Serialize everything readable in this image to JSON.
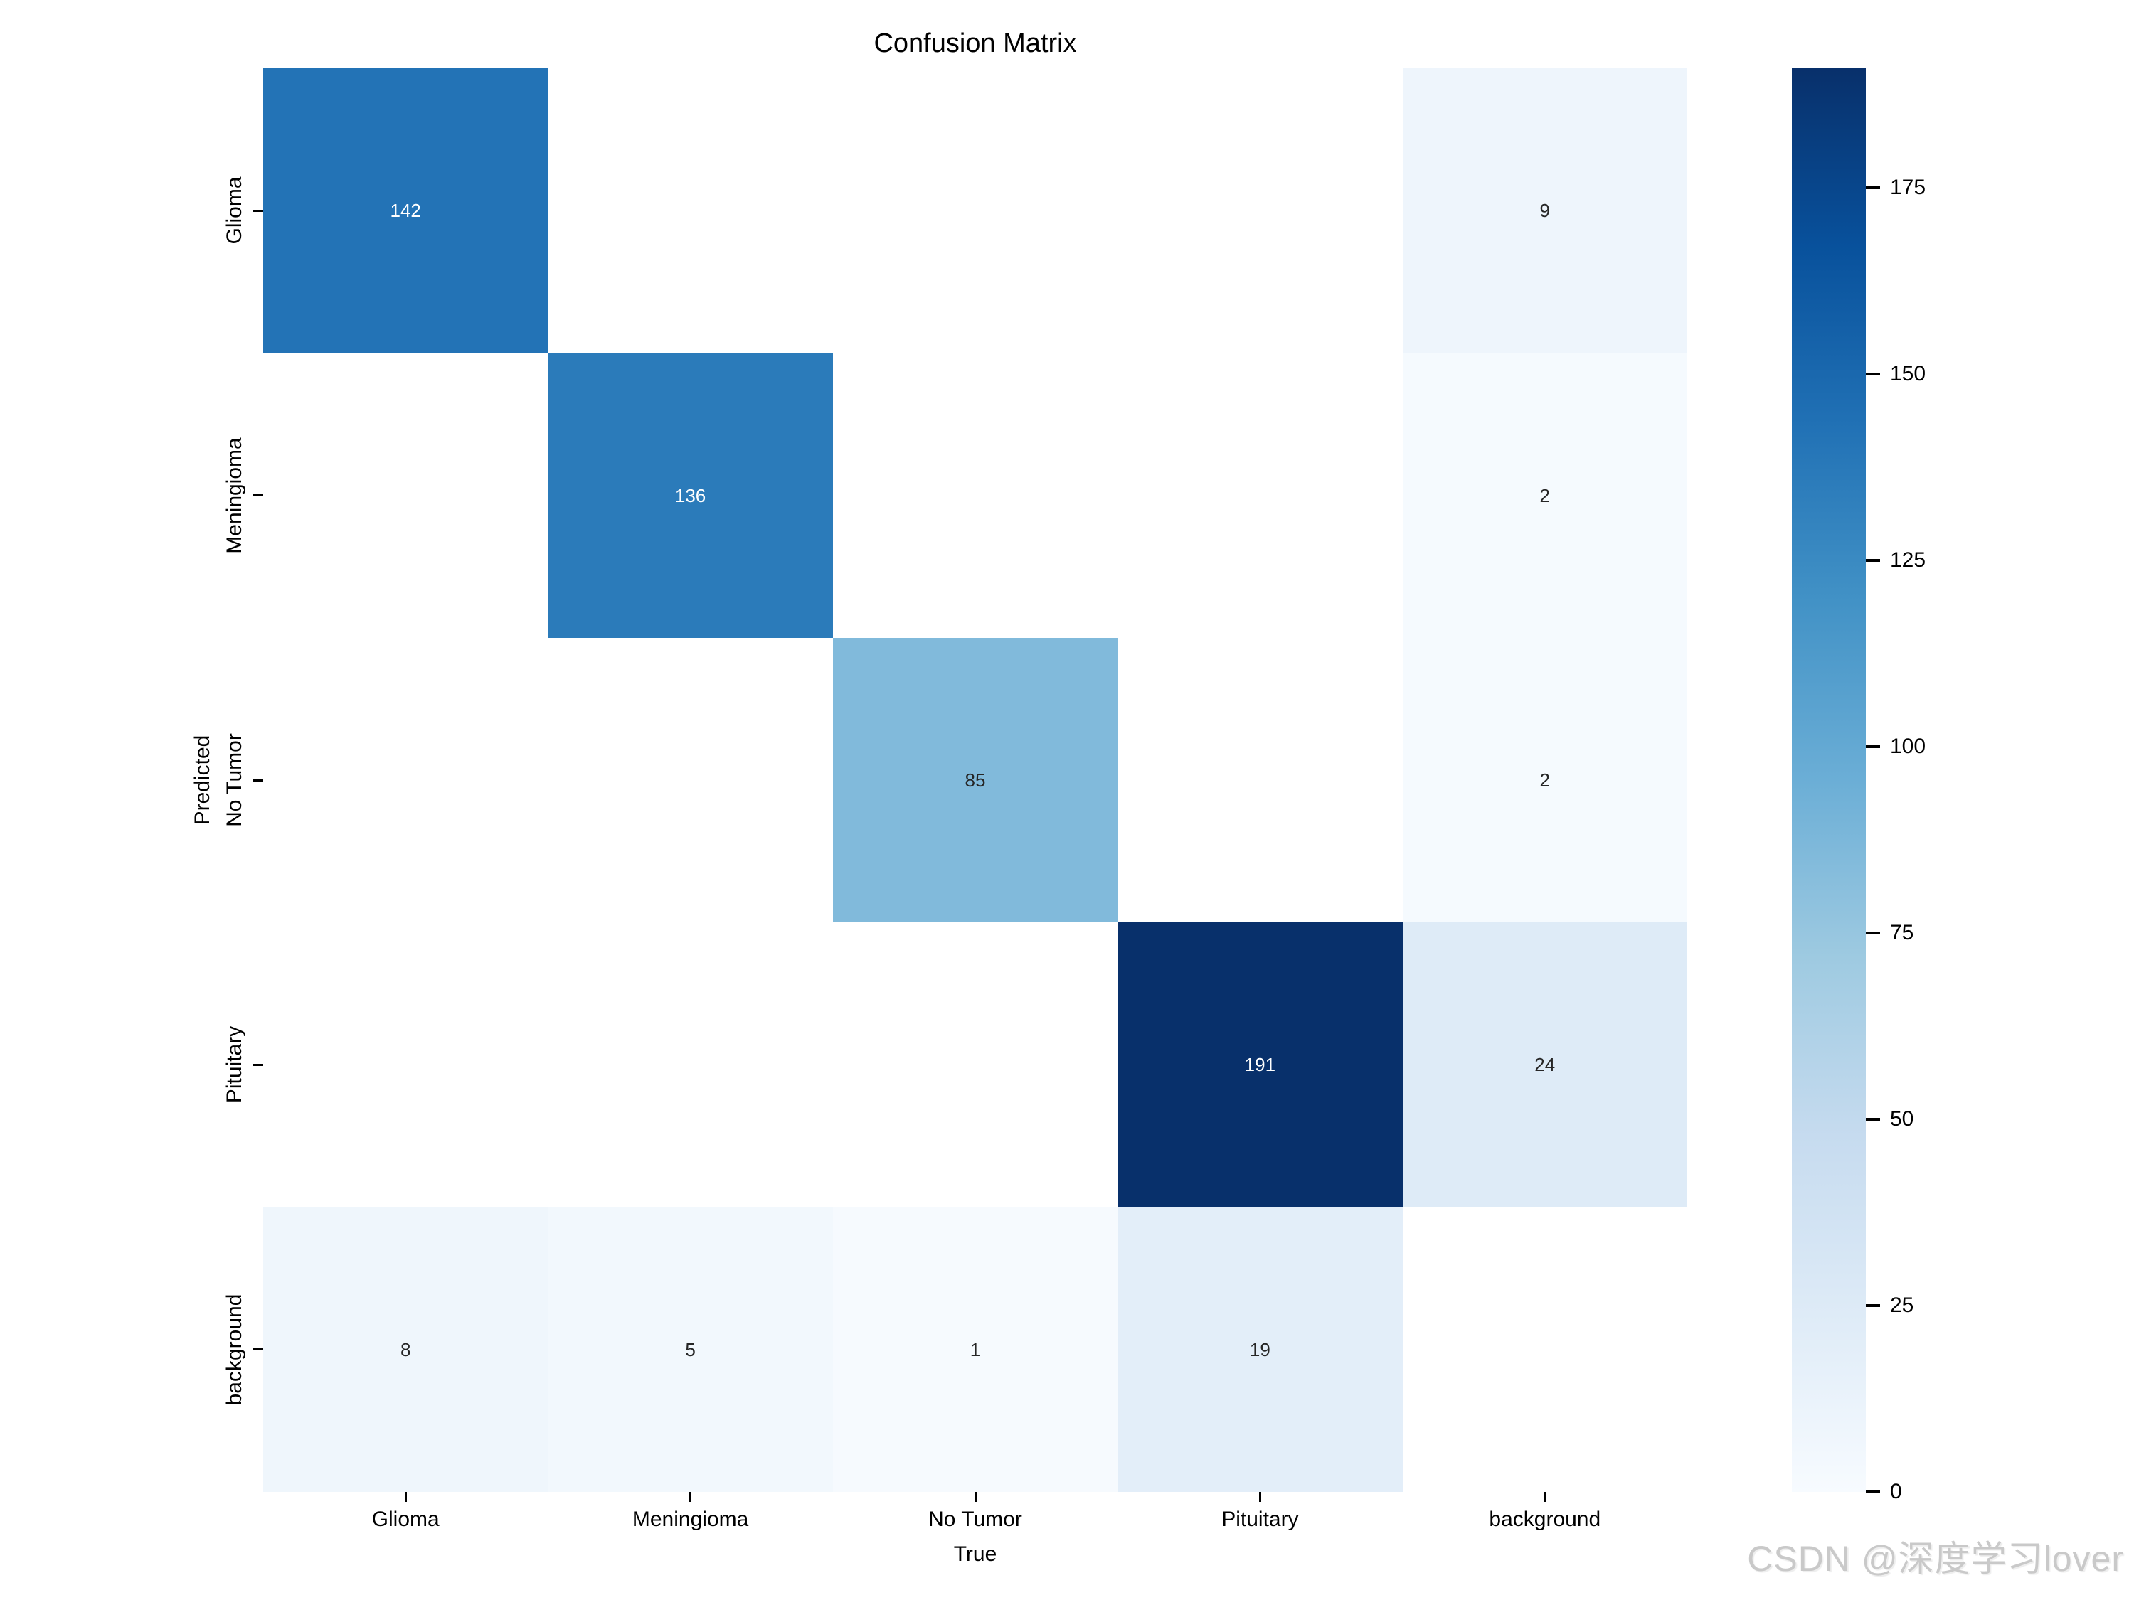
{
  "chart_data": {
    "type": "heatmap",
    "title": "Confusion Matrix",
    "xlabel": "True",
    "ylabel": "Predicted",
    "x_categories": [
      "Glioma",
      "Meningioma",
      "No Tumor",
      "Pituitary",
      "background"
    ],
    "y_categories": [
      "Glioma",
      "Meningioma",
      "No Tumor",
      "Pituitary",
      "background"
    ],
    "matrix": [
      [
        142,
        0,
        0,
        0,
        9
      ],
      [
        0,
        136,
        0,
        0,
        2
      ],
      [
        0,
        0,
        85,
        0,
        2
      ],
      [
        0,
        0,
        0,
        191,
        24
      ],
      [
        8,
        5,
        1,
        19,
        0
      ]
    ],
    "annotations": [
      [
        "142",
        "",
        "",
        "",
        "9"
      ],
      [
        "",
        "136",
        "",
        "",
        "2"
      ],
      [
        "",
        "",
        "85",
        "",
        "2"
      ],
      [
        "",
        "",
        "",
        "191",
        "24"
      ],
      [
        "8",
        "5",
        "1",
        "19",
        ""
      ]
    ],
    "annotation_colors": [
      [
        "#ffffff",
        "",
        "",
        "",
        "#262626"
      ],
      [
        "",
        "#ffffff",
        "",
        "",
        "#262626"
      ],
      [
        "",
        "",
        "#262626",
        "",
        "#262626"
      ],
      [
        "",
        "",
        "",
        "#ffffff",
        "#262626"
      ],
      [
        "#262626",
        "#262626",
        "#262626",
        "#262626",
        ""
      ]
    ],
    "cell_colors": [
      [
        "#2373b6",
        "#ffffff",
        "#ffffff",
        "#ffffff",
        "#eef5fc"
      ],
      [
        "#ffffff",
        "#2b7bba",
        "#ffffff",
        "#ffffff",
        "#f5fafe"
      ],
      [
        "#ffffff",
        "#ffffff",
        "#81badb",
        "#ffffff",
        "#f5fafe"
      ],
      [
        "#ffffff",
        "#ffffff",
        "#ffffff",
        "#08306b",
        "#deebf7"
      ],
      [
        "#eff6fc",
        "#f2f8fd",
        "#f6fafe",
        "#e3eef9",
        "#ffffff"
      ]
    ],
    "colormap": "Blues",
    "grid": false,
    "legend_position": "right-colorbar",
    "colorbar": {
      "vmin": 0,
      "vmax": 191,
      "ticks": [
        "0",
        "25",
        "50",
        "75",
        "100",
        "125",
        "150",
        "175"
      ],
      "tick_values": [
        0,
        25,
        50,
        75,
        100,
        125,
        150,
        175
      ],
      "gradient_stops": [
        "#f7fbff",
        "#deebf7",
        "#c6dbef",
        "#9ecae1",
        "#6baed6",
        "#4292c6",
        "#2171b5",
        "#08519c",
        "#08306b"
      ]
    }
  },
  "watermark": {
    "text": "CSDN @深度学习lover",
    "color": "#c9c9c9"
  }
}
